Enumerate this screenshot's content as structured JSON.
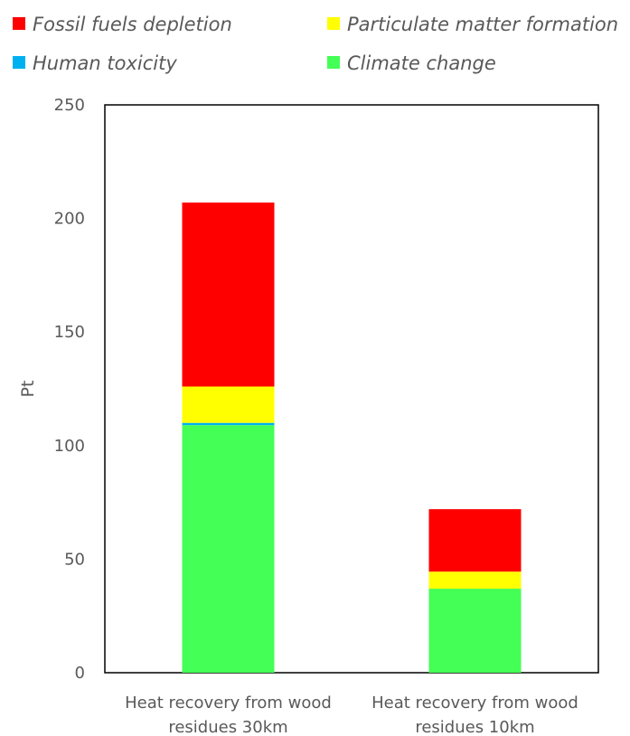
{
  "chart_data": {
    "type": "bar",
    "stacked": true,
    "categories": [
      [
        "Heat recovery from wood",
        "residues 30km"
      ],
      [
        "Heat recovery from wood",
        "residues 10km"
      ]
    ],
    "series": [
      {
        "name": "Climate change",
        "color": "#44FF55",
        "values": [
          109,
          37
        ]
      },
      {
        "name": "Human toxicity",
        "color": "#00B0F0",
        "values": [
          1,
          0
        ]
      },
      {
        "name": "Particulate matter formation",
        "color": "#FFFF00",
        "values": [
          16,
          7.5
        ]
      },
      {
        "name": "Fossil fuels depletion",
        "color": "#FF0000",
        "values": [
          81,
          27.5
        ]
      }
    ],
    "legend_order": [
      "Fossil fuels depletion",
      "Particulate matter formation",
      "Human toxicity",
      "Climate change"
    ],
    "legend_position": "top",
    "title": "",
    "xlabel": "",
    "ylabel": "Pt",
    "ylim": [
      0,
      250
    ],
    "yticks": [
      0,
      50,
      100,
      150,
      200,
      250
    ],
    "grid": false
  }
}
